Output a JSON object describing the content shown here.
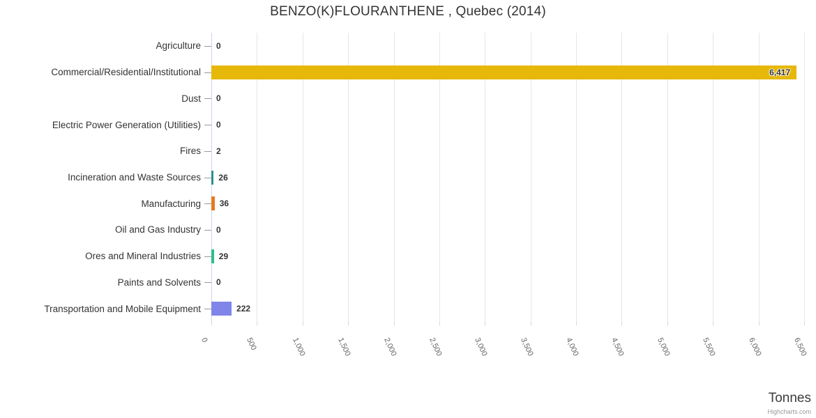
{
  "chart_data": {
    "type": "bar",
    "title": "BENZO(K)FLOURANTHENE , Quebec (2014)",
    "categories": [
      "Agriculture",
      "Commercial/Residential/Institutional",
      "Dust",
      "Electric Power Generation (Utilities)",
      "Fires",
      "Incineration and Waste Sources",
      "Manufacturing",
      "Oil and Gas Industry",
      "Ores and Mineral Industries",
      "Paints and Solvents",
      "Transportation and Mobile Equipment"
    ],
    "values": [
      0,
      6417,
      0,
      0,
      2,
      26,
      36,
      0,
      29,
      0,
      222
    ],
    "value_labels": [
      "0",
      "6,417",
      "0",
      "0",
      "2",
      "26",
      "36",
      "0",
      "29",
      "0",
      "222"
    ],
    "colors": [
      null,
      "#e6b80a",
      null,
      null,
      null,
      "#2b908f",
      "#e57b20",
      null,
      "#2bbd8e",
      null,
      "#8085e9"
    ],
    "xlabel": "Tonnes",
    "ylabel": "",
    "xlim": [
      0,
      6500
    ],
    "x_ticks": [
      "0",
      "500",
      "1,000",
      "1,500",
      "2,000",
      "2,500",
      "3,000",
      "3,500",
      "4,000",
      "4,500",
      "5,000",
      "5,500",
      "6,000",
      "6,500"
    ],
    "grid": true,
    "legend": false,
    "orientation": "horizontal"
  },
  "credits": "Highcharts.com"
}
